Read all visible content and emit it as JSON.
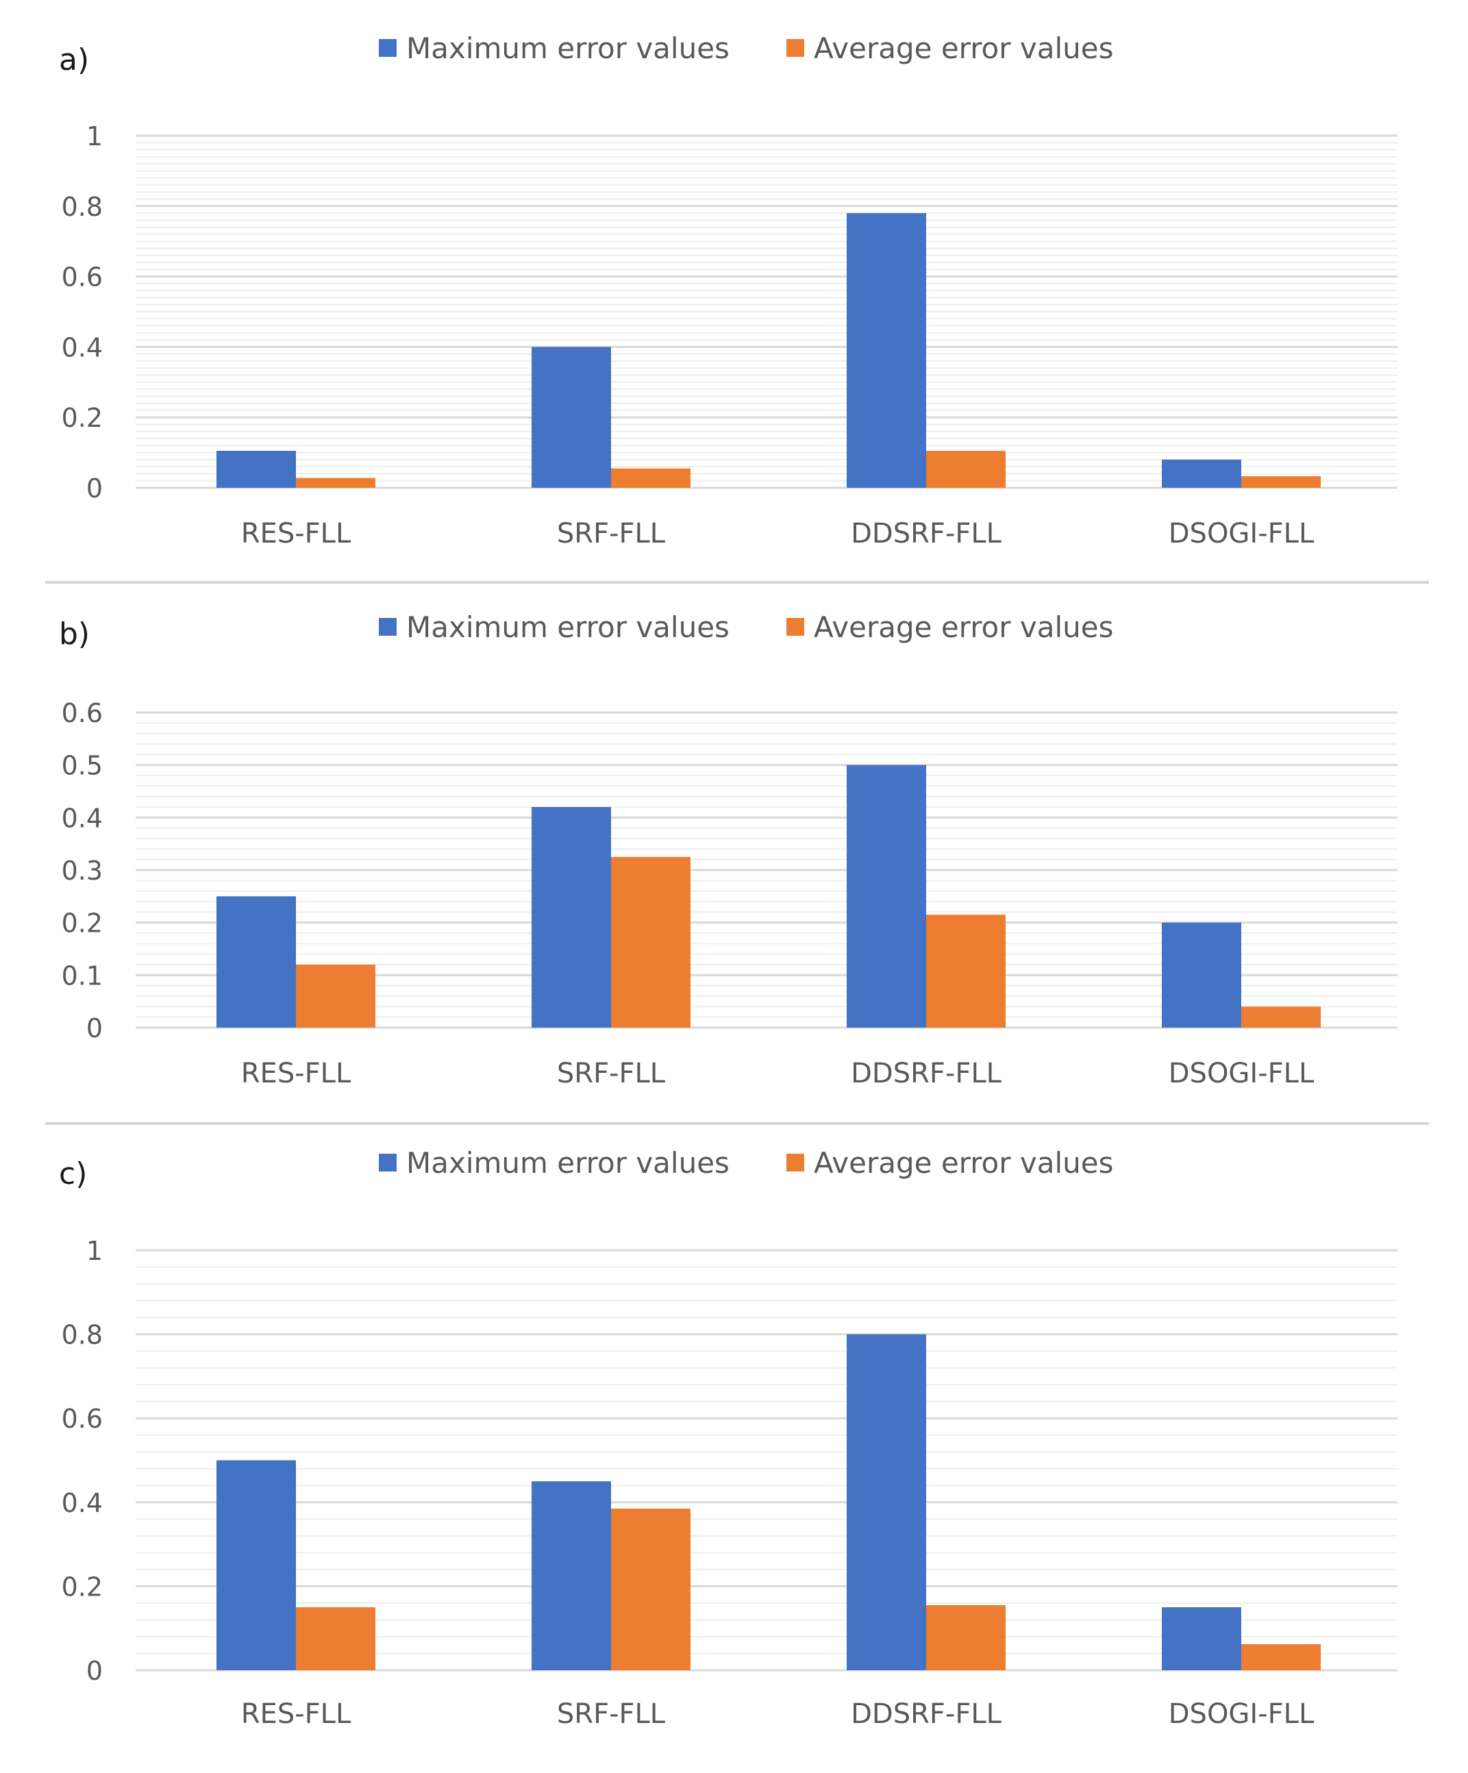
{
  "chart_data": [
    {
      "type": "bar",
      "panel_label": "a)",
      "categories": [
        "RES-FLL",
        "SRF-FLL",
        "DDSRF-FLL",
        "DSOGI-FLL"
      ],
      "series": [
        {
          "name": "Maximum error values",
          "values": [
            0.105,
            0.4,
            0.78,
            0.08
          ]
        },
        {
          "name": "Average error values",
          "values": [
            0.028,
            0.055,
            0.105,
            0.033
          ]
        }
      ],
      "yticks": [
        "0",
        "0.2",
        "0.4",
        "0.6",
        "0.8",
        "1"
      ],
      "ylim": [
        0,
        1
      ],
      "minor_step": 0.02,
      "legend_position": "top-center"
    },
    {
      "type": "bar",
      "panel_label": "b)",
      "categories": [
        "RES-FLL",
        "SRF-FLL",
        "DDSRF-FLL",
        "DSOGI-FLL"
      ],
      "series": [
        {
          "name": "Maximum error values",
          "values": [
            0.25,
            0.42,
            0.5,
            0.2
          ]
        },
        {
          "name": "Average error values",
          "values": [
            0.12,
            0.325,
            0.215,
            0.04
          ]
        }
      ],
      "yticks": [
        "0",
        "0.1",
        "0.2",
        "0.3",
        "0.4",
        "0.5",
        "0.6"
      ],
      "ylim": [
        0,
        0.6
      ],
      "minor_step": 0.02,
      "legend_position": "top-center"
    },
    {
      "type": "bar",
      "panel_label": "c)",
      "categories": [
        "RES-FLL",
        "SRF-FLL",
        "DDSRF-FLL",
        "DSOGI-FLL"
      ],
      "series": [
        {
          "name": "Maximum error values",
          "values": [
            0.5,
            0.45,
            0.8,
            0.15
          ]
        },
        {
          "name": "Average error values",
          "values": [
            0.15,
            0.385,
            0.155,
            0.062
          ]
        }
      ],
      "yticks": [
        "0",
        "0.2",
        "0.4",
        "0.6",
        "0.8",
        "1"
      ],
      "ylim": [
        0,
        1
      ],
      "minor_step": 0.04,
      "legend_position": "top-center"
    }
  ],
  "colors": {
    "max": "#4472C4",
    "avg": "#ED7D31",
    "tick_text": "#595959",
    "major_grid": "#d9d9d9",
    "minor_grid": "#eeeeee"
  }
}
